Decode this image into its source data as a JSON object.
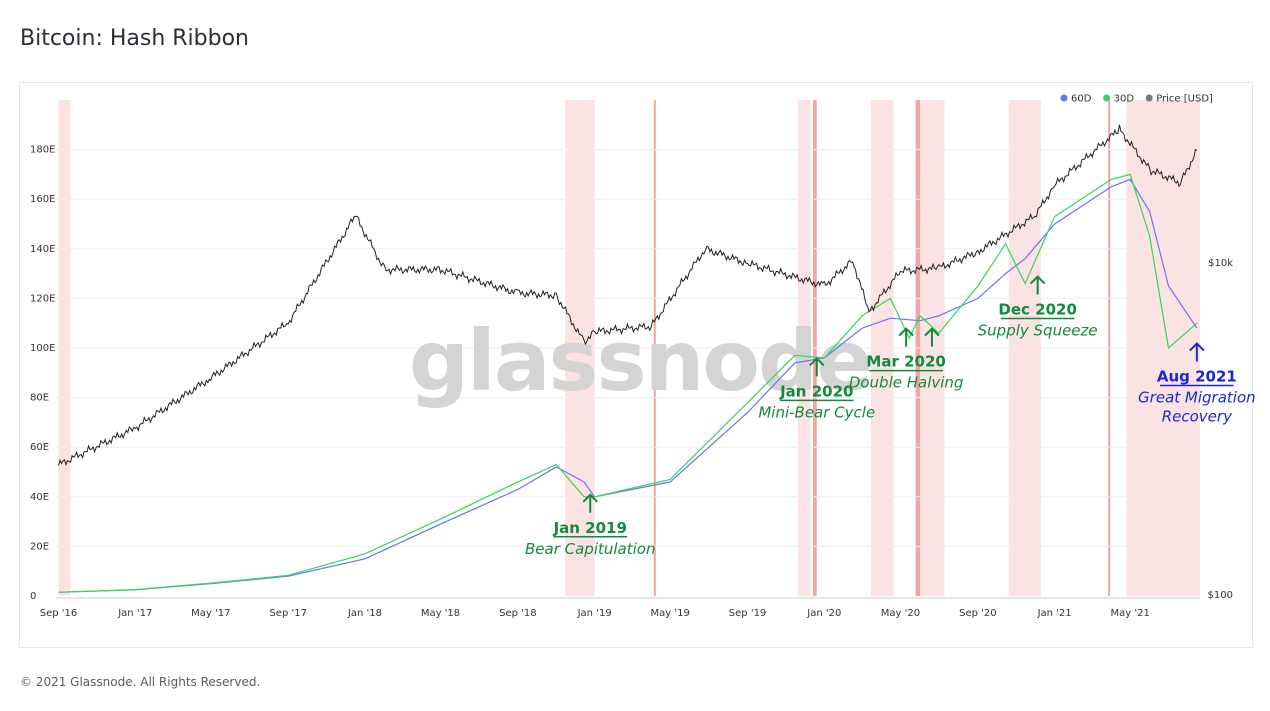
{
  "header": {
    "title": "Bitcoin: Hash Ribbon"
  },
  "footer": {
    "copyright": "© 2021 Glassnode. All Rights Reserved."
  },
  "watermark": "glassnode",
  "colors": {
    "ma60": "#6b73ee",
    "ma30": "#35d65a",
    "price": "#222222",
    "capitulation": "#f29a9a",
    "annotation_green": "#118a3e",
    "annotation_blue": "#1d25d8"
  },
  "chart_data": {
    "type": "line",
    "title": "Bitcoin: Hash Ribbon",
    "x_range": [
      "2016-08-28",
      "2021-08-20"
    ],
    "y_left": {
      "unit": "E (hash rate, EH/s)",
      "range": [
        0,
        200
      ],
      "ticks": [
        "0",
        "20E",
        "40E",
        "60E",
        "80E",
        "100E",
        "120E",
        "140E",
        "160E",
        "180E"
      ]
    },
    "y_right": {
      "unit": "Price [USD], log scale",
      "ticks": [
        "$100",
        "$10k"
      ]
    },
    "x_ticks": [
      "Sep '16",
      "Jan '17",
      "May '17",
      "Sep '17",
      "Jan '18",
      "May '18",
      "Sep '18",
      "Jan '19",
      "May '19",
      "Sep '19",
      "Jan '20",
      "May '20",
      "Sep '20",
      "Jan '21",
      "May '21"
    ],
    "legend": {
      "placement": "top-right",
      "items": [
        {
          "label": "60D",
          "color": "#6b73ee"
        },
        {
          "label": "30D",
          "color": "#35d65a"
        },
        {
          "label": "Price [USD]",
          "color": "#777777"
        }
      ]
    },
    "series": [
      {
        "name": "60D",
        "points": [
          [
            "2016-09-01",
            1.5
          ],
          [
            "2017-01-01",
            2.5
          ],
          [
            "2017-05-01",
            5
          ],
          [
            "2017-09-01",
            8
          ],
          [
            "2018-01-01",
            15
          ],
          [
            "2018-05-01",
            29
          ],
          [
            "2018-09-01",
            43
          ],
          [
            "2018-11-01",
            52
          ],
          [
            "2018-12-15",
            46
          ],
          [
            "2019-01-01",
            40
          ],
          [
            "2019-05-01",
            46
          ],
          [
            "2019-09-01",
            74
          ],
          [
            "2019-11-15",
            94
          ],
          [
            "2020-01-01",
            96
          ],
          [
            "2020-03-01",
            108
          ],
          [
            "2020-04-15",
            112
          ],
          [
            "2020-06-01",
            111
          ],
          [
            "2020-07-01",
            113
          ],
          [
            "2020-09-01",
            120
          ],
          [
            "2020-10-15",
            130
          ],
          [
            "2020-11-15",
            136
          ],
          [
            "2021-01-01",
            150
          ],
          [
            "2021-04-01",
            165
          ],
          [
            "2021-05-01",
            168
          ],
          [
            "2021-06-01",
            155
          ],
          [
            "2021-07-01",
            125
          ],
          [
            "2021-08-15",
            108
          ]
        ]
      },
      {
        "name": "30D",
        "points": [
          [
            "2016-09-01",
            1.5
          ],
          [
            "2017-01-01",
            2.6
          ],
          [
            "2017-05-01",
            5.2
          ],
          [
            "2017-09-01",
            8.3
          ],
          [
            "2018-01-01",
            17
          ],
          [
            "2018-05-01",
            31
          ],
          [
            "2018-09-01",
            46
          ],
          [
            "2018-11-01",
            53
          ],
          [
            "2018-12-15",
            40
          ],
          [
            "2019-01-01",
            40
          ],
          [
            "2019-05-01",
            47
          ],
          [
            "2019-09-01",
            78
          ],
          [
            "2019-11-15",
            97
          ],
          [
            "2020-01-01",
            96
          ],
          [
            "2020-03-01",
            113
          ],
          [
            "2020-04-15",
            120
          ],
          [
            "2020-05-15",
            104
          ],
          [
            "2020-06-01",
            113
          ],
          [
            "2020-07-01",
            106
          ],
          [
            "2020-09-01",
            125
          ],
          [
            "2020-10-15",
            142
          ],
          [
            "2020-11-15",
            126
          ],
          [
            "2021-01-01",
            153
          ],
          [
            "2021-04-01",
            168
          ],
          [
            "2021-05-01",
            170
          ],
          [
            "2021-06-01",
            145
          ],
          [
            "2021-07-01",
            100
          ],
          [
            "2021-08-15",
            110
          ]
        ]
      },
      {
        "name": "Price [USD]",
        "points": [
          [
            "2016-09-01",
            600
          ],
          [
            "2017-01-01",
            1000
          ],
          [
            "2017-05-01",
            2000
          ],
          [
            "2017-09-01",
            4300
          ],
          [
            "2017-12-17",
            19000
          ],
          [
            "2018-02-01",
            9000
          ],
          [
            "2018-05-01",
            9000
          ],
          [
            "2018-09-01",
            6500
          ],
          [
            "2018-11-01",
            6300
          ],
          [
            "2018-12-15",
            3300
          ],
          [
            "2019-01-01",
            3800
          ],
          [
            "2019-04-01",
            4100
          ],
          [
            "2019-06-26",
            12000
          ],
          [
            "2019-09-01",
            9800
          ],
          [
            "2020-01-01",
            7200
          ],
          [
            "2020-02-15",
            10200
          ],
          [
            "2020-03-12",
            5000
          ],
          [
            "2020-05-01",
            8800
          ],
          [
            "2020-07-01",
            9200
          ],
          [
            "2020-09-01",
            11500
          ],
          [
            "2020-12-01",
            19000
          ],
          [
            "2021-01-01",
            29000
          ],
          [
            "2021-04-14",
            63000
          ],
          [
            "2021-06-01",
            36000
          ],
          [
            "2021-07-20",
            30000
          ],
          [
            "2021-08-15",
            47000
          ]
        ]
      }
    ],
    "capitulation_periods": [
      [
        "2016-09-01",
        "2016-09-20"
      ],
      [
        "2018-11-15",
        "2019-01-01"
      ],
      [
        "2019-04-05",
        "2019-04-08"
      ],
      [
        "2019-11-20",
        "2019-12-10"
      ],
      [
        "2019-12-14",
        "2019-12-20"
      ],
      [
        "2020-03-15",
        "2020-04-20"
      ],
      [
        "2020-05-25",
        "2020-06-01"
      ],
      [
        "2020-06-01",
        "2020-07-10"
      ],
      [
        "2020-10-20",
        "2020-12-10"
      ],
      [
        "2021-03-27",
        "2021-03-29"
      ],
      [
        "2021-04-25",
        "2021-08-20"
      ]
    ],
    "annotations": [
      {
        "title": "Jan 2019",
        "subtitle": "Bear Capitulation",
        "date": "2018-12-25",
        "value": 40,
        "color": "green"
      },
      {
        "title": "Jan 2020",
        "subtitle": "Mini-Bear Cycle",
        "date": "2019-12-20",
        "value": 95,
        "color": "green"
      },
      {
        "title": "Mar 2020",
        "subtitle": "Double Halving",
        "date": "2020-05-10",
        "value": 107,
        "color": "green"
      },
      {
        "title": "",
        "subtitle": "",
        "date": "2020-06-20",
        "value": 107,
        "color": "green"
      },
      {
        "title": "Dec 2020",
        "subtitle": "Supply Squeeze",
        "date": "2020-12-05",
        "value": 128,
        "color": "green"
      },
      {
        "title": "Aug 2021",
        "subtitle": "Great Migration",
        "subtitle2": "Recovery",
        "date": "2021-08-15",
        "value": 101,
        "color": "blue"
      }
    ]
  }
}
